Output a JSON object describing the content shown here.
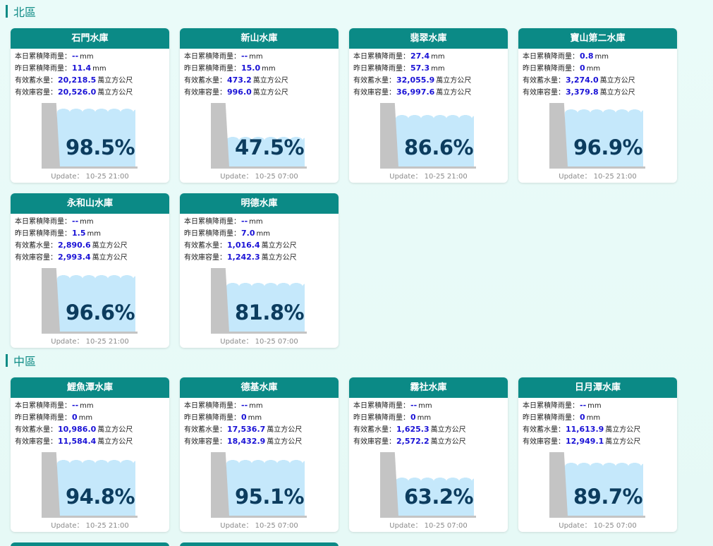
{
  "regions": [
    {
      "title": "北區",
      "cards": [
        {
          "name": "石門水庫",
          "rain_today": "--",
          "rain_yesterday": "11.4",
          "storage": "20,218.5",
          "capacity": "20,526.0",
          "percent_label": "98.5%",
          "percent": 98.5,
          "update": "Update： 10-25 21:00"
        },
        {
          "name": "新山水庫",
          "rain_today": "--",
          "rain_yesterday": "15.0",
          "storage": "473.2",
          "capacity": "996.0",
          "percent_label": "47.5%",
          "percent": 47.5,
          "update": "Update： 10-25 07:00"
        },
        {
          "name": "翡翠水庫",
          "rain_today": "27.4",
          "rain_yesterday": "57.3",
          "storage": "32,055.9",
          "capacity": "36,997.6",
          "percent_label": "86.6%",
          "percent": 86.6,
          "update": "Update： 10-25 21:00"
        },
        {
          "name": "寶山第二水庫",
          "rain_today": "0.8",
          "rain_yesterday": "0",
          "storage": "3,274.0",
          "capacity": "3,379.8",
          "percent_label": "96.9%",
          "percent": 96.9,
          "update": "Update： 10-25 21:00"
        },
        {
          "name": "永和山水庫",
          "rain_today": "--",
          "rain_yesterday": "1.5",
          "storage": "2,890.6",
          "capacity": "2,993.4",
          "percent_label": "96.6%",
          "percent": 96.6,
          "update": "Update： 10-25 21:00"
        },
        {
          "name": "明德水庫",
          "rain_today": "--",
          "rain_yesterday": "7.0",
          "storage": "1,016.4",
          "capacity": "1,242.3",
          "percent_label": "81.8%",
          "percent": 81.8,
          "update": "Update： 10-25 07:00"
        }
      ]
    },
    {
      "title": "中區",
      "cards": [
        {
          "name": "鯉魚潭水庫",
          "rain_today": "--",
          "rain_yesterday": "0",
          "storage": "10,986.0",
          "capacity": "11,584.4",
          "percent_label": "94.8%",
          "percent": 94.8,
          "update": "Update： 10-25 21:00"
        },
        {
          "name": "德基水庫",
          "rain_today": "--",
          "rain_yesterday": "0",
          "storage": "17,536.7",
          "capacity": "18,432.9",
          "percent_label": "95.1%",
          "percent": 95.1,
          "update": "Update： 10-25 07:00"
        },
        {
          "name": "霧社水庫",
          "rain_today": "--",
          "rain_yesterday": "0",
          "storage": "1,625.3",
          "capacity": "2,572.2",
          "percent_label": "63.2%",
          "percent": 63.2,
          "update": "Update： 10-25 07:00"
        },
        {
          "name": "日月潭水庫",
          "rain_today": "--",
          "rain_yesterday": "0",
          "storage": "11,613.9",
          "capacity": "12,949.1",
          "percent_label": "89.7%",
          "percent": 89.7,
          "update": "Update： 10-25 07:00"
        }
      ]
    }
  ],
  "labels": {
    "rain_today": "本日累積降雨量：",
    "rain_yesterday": "昨日累積降雨量：",
    "storage": "有效蓄水量：",
    "capacity": "有效庫容量：",
    "mm": "mm",
    "volume_unit": "萬立方公尺"
  },
  "colors": {
    "header": "#0b8a86",
    "water": "#c5e8fb",
    "value": "#1a12d6",
    "percent": "#0c3c5e"
  }
}
